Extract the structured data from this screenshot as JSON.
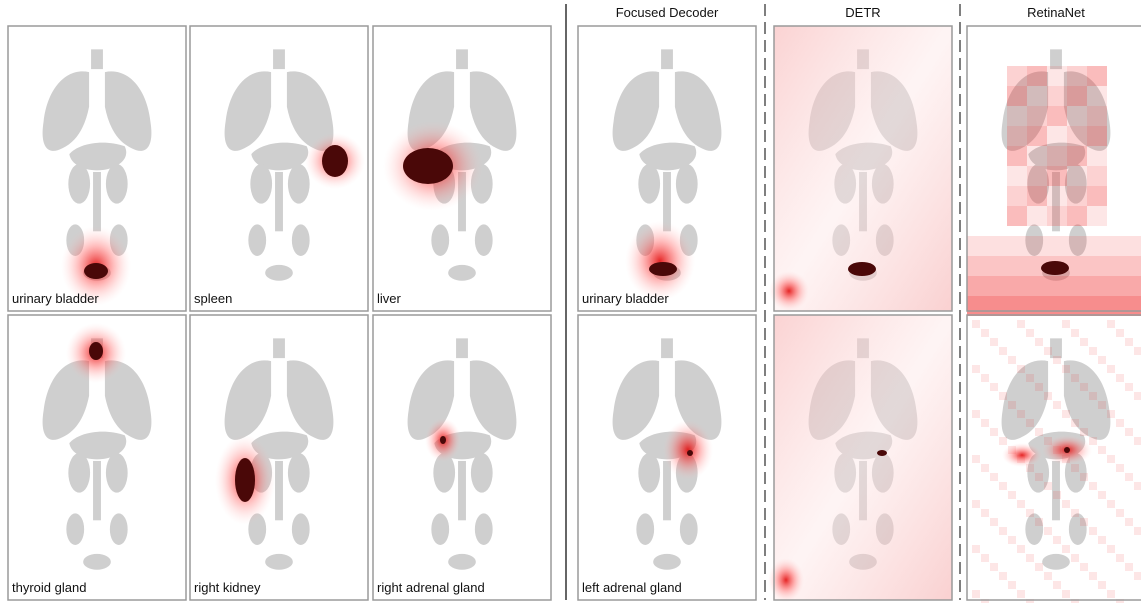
{
  "left_panels": {
    "labels": [
      "urinary bladder",
      "spleen",
      "liver",
      "thyroid gland",
      "right kidney",
      "right adrenal gland"
    ]
  },
  "right_panels": {
    "column_headers": [
      "Focused Decoder",
      "DETR",
      "RetinaNet"
    ],
    "row_labels": [
      "urinary bladder",
      "left adrenal gland"
    ]
  }
}
